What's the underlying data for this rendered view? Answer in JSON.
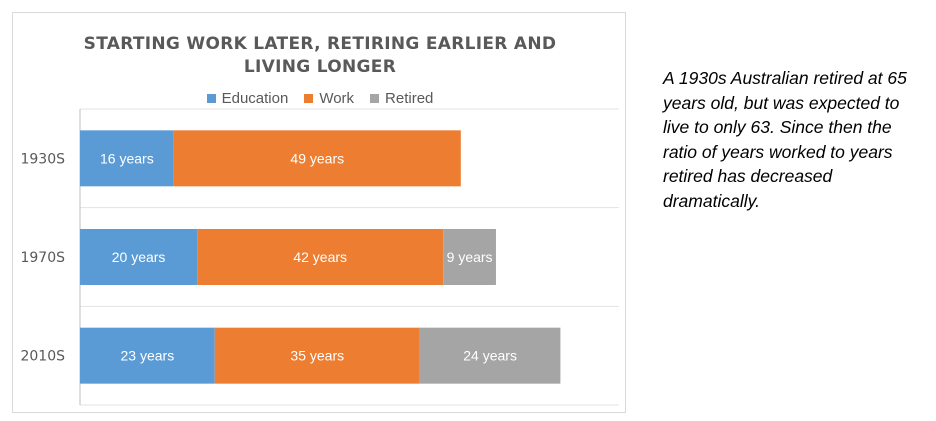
{
  "chart_data": {
    "type": "bar",
    "orientation": "horizontal",
    "stacked": true,
    "title": "STARTING WORK LATER, RETIRING EARLIER AND LIVING LONGER",
    "title_lines": [
      "STARTING WORK LATER, RETIRING EARLIER AND",
      "LIVING LONGER"
    ],
    "categories": [
      "1930S",
      "1970S",
      "2010S"
    ],
    "series": [
      {
        "name": "Education",
        "color": "#5b9bd5",
        "values": [
          16,
          20,
          23
        ],
        "labels": [
          "16 years",
          "20 years",
          "23 years"
        ]
      },
      {
        "name": "Work",
        "color": "#ed7d31",
        "values": [
          49,
          42,
          35
        ],
        "labels": [
          "49 years",
          "42 years",
          "35 years"
        ]
      },
      {
        "name": "Retired",
        "color": "#a5a5a5",
        "values": [
          0,
          9,
          24
        ],
        "labels": [
          "",
          "9 years",
          "24 years"
        ]
      }
    ],
    "xlim": [
      0,
      92
    ],
    "grid": true,
    "legend_position": "top"
  },
  "caption": "A 1930s  Australian retired at 65 years old, but was expected to live to only 63.  Since then the ratio of years worked  to years retired has decreased dramatically."
}
